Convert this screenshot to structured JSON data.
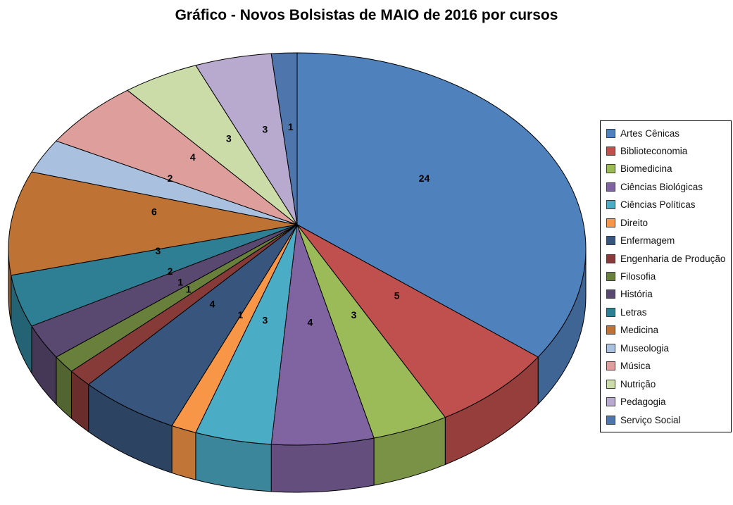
{
  "title": "Gráfico - Novos Bolsistas de MAIO de 2016 por cursos",
  "chart_data": {
    "type": "pie",
    "title": "Gráfico - Novos Bolsistas de MAIO de 2016 por cursos",
    "effect": "3d",
    "start_angle_deg": 0,
    "direction": "clockwise",
    "total": 70,
    "data_labels": "value",
    "legend_position": "right",
    "background_color": "#FFFFFF",
    "outline_color": "#000000",
    "slices": [
      {
        "label": "Artes Cênicas",
        "value": 24,
        "color": "#4F81BD"
      },
      {
        "label": "Biblioteconomia",
        "value": 5,
        "color": "#C0504D"
      },
      {
        "label": "Biomedicina",
        "value": 3,
        "color": "#9BBB59"
      },
      {
        "label": "Ciências Biológicas",
        "value": 4,
        "color": "#8064A2"
      },
      {
        "label": "Ciências Políticas",
        "value": 3,
        "color": "#4BACC6"
      },
      {
        "label": "Direito",
        "value": 1,
        "color": "#F79646"
      },
      {
        "label": "Enfermagem",
        "value": 4,
        "color": "#38567D"
      },
      {
        "label": "Engenharia de Produção",
        "value": 1,
        "color": "#873B38"
      },
      {
        "label": "Filosofia",
        "value": 1,
        "color": "#69803D"
      },
      {
        "label": "História",
        "value": 2,
        "color": "#59486F"
      },
      {
        "label": "Letras",
        "value": 3,
        "color": "#2E7F93"
      },
      {
        "label": "Medicina",
        "value": 6,
        "color": "#BE7233"
      },
      {
        "label": "Museologia",
        "value": 2,
        "color": "#A9C0DE"
      },
      {
        "label": "Música",
        "value": 4,
        "color": "#DE9E9B"
      },
      {
        "label": "Nutrição",
        "value": 3,
        "color": "#CCDCA8"
      },
      {
        "label": "Pedagogia",
        "value": 3,
        "color": "#B8A9CE"
      },
      {
        "label": "Serviço Social",
        "value": 1,
        "color": "#4F76AC"
      }
    ]
  }
}
